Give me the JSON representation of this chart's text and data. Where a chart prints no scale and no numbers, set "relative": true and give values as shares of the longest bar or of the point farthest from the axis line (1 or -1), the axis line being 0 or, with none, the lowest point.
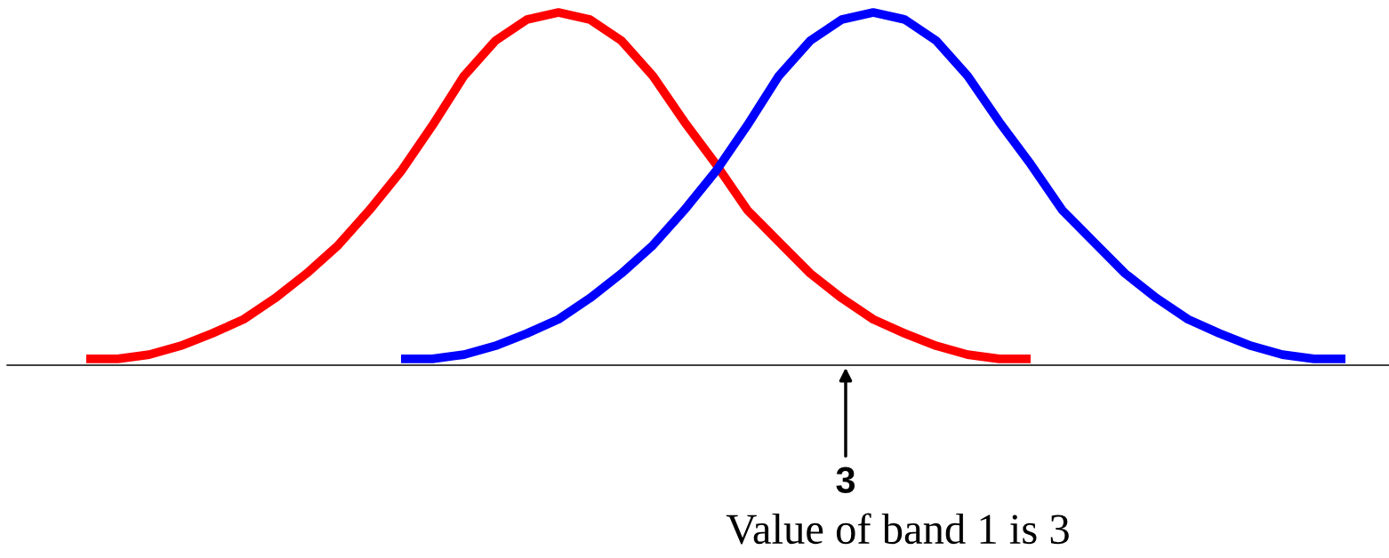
{
  "chart_data": {
    "type": "line",
    "relative": true,
    "categories": [
      null,
      null,
      null,
      null,
      null,
      null,
      null,
      null,
      null,
      null,
      null,
      null,
      null,
      null,
      null,
      null,
      null,
      null,
      null,
      null,
      null,
      null,
      null,
      null,
      null,
      null,
      null,
      null,
      null,
      null,
      null,
      null,
      null,
      null,
      null,
      null,
      null,
      null,
      null,
      null,
      null
    ],
    "series": [
      {
        "color": "#ff0000",
        "values": [
          0.018,
          0.018,
          0.03,
          0.055,
          0.09,
          0.13,
          0.19,
          0.26,
          0.34,
          0.44,
          0.55,
          0.68,
          0.82,
          0.92,
          0.98,
          1,
          0.98,
          0.92,
          0.82,
          0.69,
          0.57,
          0.44,
          0.35,
          0.26,
          0.19,
          0.13,
          0.09,
          0.055,
          0.03,
          0.018,
          0.018,
          null,
          null,
          null,
          null,
          null,
          null,
          null,
          null,
          null,
          null
        ]
      },
      {
        "color": "#0000ff",
        "values": [
          null,
          null,
          null,
          null,
          null,
          null,
          null,
          null,
          null,
          null,
          0.018,
          0.018,
          0.03,
          0.055,
          0.09,
          0.13,
          0.19,
          0.26,
          0.34,
          0.44,
          0.55,
          0.68,
          0.82,
          0.92,
          0.98,
          1,
          0.98,
          0.92,
          0.82,
          0.69,
          0.57,
          0.44,
          0.35,
          0.26,
          0.19,
          0.13,
          0.09,
          0.055,
          0.03,
          0.018,
          0.018
        ]
      }
    ],
    "annotations": [
      "3",
      "Value of band 1 is 3"
    ],
    "grid": false,
    "legend": false,
    "marker": "none",
    "line_style": "solid"
  }
}
